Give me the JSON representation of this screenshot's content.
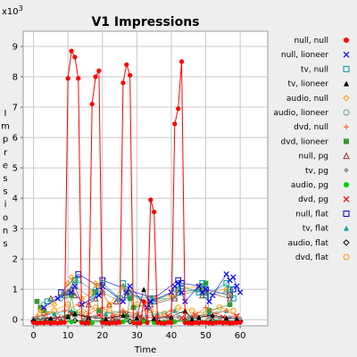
{
  "chart_data": {
    "type": "scatter",
    "title": "V1 Impressions",
    "xlabel": "Time",
    "ylabel": "Impressions",
    "y_multiplier_label": "x10",
    "y_multiplier_exp": "3",
    "xlim": [
      -3,
      68
    ],
    "ylim": [
      -200,
      9500
    ],
    "x_ticks": [
      0,
      10,
      20,
      30,
      40,
      50,
      60
    ],
    "y_ticks": [
      0,
      1000,
      2000,
      3000,
      4000,
      5000,
      6000,
      7000,
      8000,
      9000
    ],
    "y_tick_labels": [
      "0",
      "1",
      "2",
      "3",
      "4",
      "5",
      "6",
      "7",
      "8",
      "9"
    ],
    "grid": true,
    "legend_position": "right",
    "series": [
      {
        "name": "null, null",
        "color": "#ff0000",
        "marker": "dot",
        "line": true,
        "x": [
          0,
          1,
          2,
          3,
          4,
          5,
          6,
          7,
          8,
          9,
          10,
          11,
          12,
          13,
          14,
          15,
          16,
          17,
          18,
          19,
          20,
          21,
          22,
          23,
          24,
          25,
          26,
          27,
          28,
          29,
          30,
          31,
          32,
          33,
          34,
          35,
          36,
          37,
          38,
          39,
          40,
          41,
          42,
          43,
          44,
          45,
          46,
          47,
          48,
          49,
          50,
          51,
          52,
          53,
          54,
          55,
          56,
          57,
          58,
          59,
          60
        ],
        "y": [
          -100,
          -120,
          -100,
          -110,
          -90,
          -120,
          -100,
          -110,
          -100,
          -90,
          7950,
          8850,
          8650,
          7950,
          -100,
          -120,
          -110,
          7100,
          8000,
          8200,
          -100,
          -110,
          -120,
          -100,
          -110,
          -90,
          7800,
          8400,
          8050,
          -100,
          -120,
          -110,
          600,
          -100,
          3950,
          3550,
          -100,
          -110,
          -120,
          -90,
          -100,
          6450,
          6950,
          8500,
          -100,
          -110,
          -120,
          -100,
          -110,
          -90,
          -100,
          -110,
          -120,
          -100,
          -90,
          -110,
          -100,
          -120,
          -110,
          -100,
          -90
        ]
      },
      {
        "name": "null, lioneer",
        "color": "#0000ff",
        "marker": "x",
        "x": [
          3,
          7,
          11,
          12,
          14,
          19,
          20,
          26,
          27,
          28,
          33,
          34,
          40,
          41,
          42,
          43,
          44,
          48,
          49,
          50,
          51,
          52,
          56,
          57,
          58,
          59,
          60
        ],
        "y": [
          400,
          700,
          900,
          1100,
          500,
          800,
          1100,
          600,
          900,
          1100,
          400,
          600,
          900,
          1100,
          1200,
          900,
          600,
          1100,
          900,
          1000,
          600,
          800,
          1500,
          1300,
          1400,
          1100,
          900
        ]
      },
      {
        "name": "tv, null",
        "color": "#009999",
        "marker": "square",
        "x": [
          4,
          9,
          12,
          13,
          18,
          20,
          25,
          26,
          28,
          34,
          35,
          42,
          43,
          48,
          49,
          50,
          56,
          57,
          58
        ],
        "y": [
          600,
          800,
          1300,
          1300,
          900,
          1200,
          700,
          1200,
          800,
          700,
          600,
          1000,
          1100,
          900,
          1200,
          800,
          1200,
          1000,
          700
        ]
      },
      {
        "name": "tv, lioneer",
        "color": "#000000",
        "marker": "triangle",
        "x": [
          0,
          5,
          10,
          12,
          16,
          21,
          26,
          30,
          32,
          35,
          40,
          44,
          46,
          48,
          52,
          56,
          59
        ],
        "y": [
          0,
          50,
          100,
          200,
          80,
          30,
          150,
          60,
          1000,
          40,
          100,
          300,
          20,
          80,
          150,
          60,
          30
        ]
      },
      {
        "name": "audio, null",
        "color": "#ff9900",
        "marker": "diamond",
        "x": [
          2,
          6,
          10,
          11,
          12,
          14,
          17,
          18,
          19,
          22,
          26,
          27,
          33,
          35,
          40,
          42,
          48,
          50,
          56,
          57
        ],
        "y": [
          300,
          500,
          1200,
          1400,
          1300,
          700,
          900,
          1200,
          1100,
          500,
          1100,
          900,
          500,
          700,
          800,
          1000,
          1100,
          900,
          1000,
          800
        ]
      },
      {
        "name": "audio, lioneer",
        "color": "#669999",
        "marker": "circle",
        "x": [
          3,
          8,
          10,
          12,
          17,
          18,
          20,
          25,
          27,
          28,
          33,
          34,
          41,
          42,
          48,
          49,
          50,
          56,
          57
        ],
        "y": [
          500,
          700,
          900,
          1100,
          700,
          1000,
          900,
          600,
          1000,
          900,
          500,
          700,
          700,
          900,
          1000,
          1100,
          800,
          900,
          1000
        ]
      },
      {
        "name": "dvd, null",
        "color": "#ff6633",
        "marker": "plus",
        "x": [
          1,
          4,
          9,
          13,
          16,
          20,
          23,
          26,
          30,
          33,
          36,
          40,
          44,
          47,
          50,
          53,
          56,
          59
        ],
        "y": [
          100,
          200,
          300,
          500,
          200,
          400,
          150,
          300,
          200,
          350,
          100,
          300,
          200,
          150,
          400,
          200,
          300,
          100
        ]
      },
      {
        "name": "dvd, lioneer",
        "color": "#339933",
        "marker": "fsquare",
        "x": [
          1,
          2,
          3,
          10,
          11,
          12,
          18,
          19,
          27,
          28,
          29,
          49,
          50,
          51,
          57
        ],
        "y": [
          600,
          400,
          300,
          100,
          800,
          200,
          900,
          300,
          100,
          700,
          400,
          1000,
          1200,
          300,
          500
        ]
      },
      {
        "name": "null, pg",
        "color": "#993333",
        "marker": "triangle-open",
        "x": [
          5,
          10,
          11,
          12,
          16,
          18,
          20,
          22,
          24,
          27,
          28,
          34,
          41,
          42,
          48,
          49,
          50,
          57
        ],
        "y": [
          700,
          900,
          1000,
          800,
          500,
          700,
          900,
          500,
          600,
          800,
          900,
          500,
          700,
          900,
          1000,
          800,
          900,
          700
        ]
      },
      {
        "name": "tv, pg",
        "color": "#999999",
        "marker": "diamond-filled",
        "x": [
          0,
          3,
          6,
          9,
          12,
          15,
          18,
          21,
          24,
          27,
          30,
          33,
          36,
          39,
          42,
          45,
          48,
          51,
          54,
          57,
          60
        ],
        "y": [
          50,
          80,
          40,
          60,
          100,
          30,
          90,
          50,
          70,
          40,
          60,
          80,
          30,
          50,
          90,
          40,
          70,
          60,
          50,
          80,
          40
        ]
      },
      {
        "name": "audio, pg",
        "color": "#00cc00",
        "marker": "dot",
        "x": [
          2,
          5,
          8,
          11,
          14,
          17,
          20,
          23,
          26,
          29,
          32,
          35,
          38,
          41,
          44,
          47,
          50,
          53,
          56,
          59
        ],
        "y": [
          -80,
          -60,
          -90,
          -70,
          -80,
          -100,
          -60,
          -90,
          -70,
          -80,
          -60,
          -90,
          -80,
          -70,
          -60,
          -90,
          -80,
          -70,
          -60,
          -80
        ]
      },
      {
        "name": "dvd, pg",
        "color": "#ff0000",
        "marker": "x",
        "x": [
          3,
          7,
          11,
          15,
          19,
          23,
          27,
          31,
          35,
          39,
          43,
          47,
          51,
          55,
          59
        ],
        "y": [
          100,
          50,
          200,
          80,
          150,
          60,
          180,
          90,
          70,
          120,
          60,
          150,
          100,
          80,
          120
        ]
      },
      {
        "name": "null, flat",
        "color": "#0000cc",
        "marker": "square",
        "x": [
          8,
          13,
          19,
          20,
          27,
          35,
          42,
          43,
          49,
          50,
          57,
          58
        ],
        "y": [
          900,
          1500,
          1100,
          1300,
          1000,
          700,
          1300,
          1200,
          1100,
          1000,
          800,
          1000
        ]
      },
      {
        "name": "tv, flat",
        "color": "#00aa99",
        "marker": "triangle-filled",
        "x": [
          1,
          6,
          11,
          16,
          21,
          26,
          31,
          36,
          41,
          46,
          51,
          56
        ],
        "y": [
          100,
          200,
          300,
          100,
          200,
          300,
          100,
          200,
          300,
          100,
          200,
          300
        ]
      },
      {
        "name": "audio, flat",
        "color": "#000000",
        "marker": "diamond",
        "x": [
          0,
          4,
          8,
          12,
          16,
          20,
          24,
          28,
          32,
          36,
          40,
          44,
          48,
          52,
          56,
          60
        ],
        "y": [
          -50,
          -20,
          -60,
          -30,
          -40,
          -50,
          -20,
          -60,
          -30,
          -40,
          -50,
          -20,
          -60,
          -30,
          -40,
          -50
        ]
      },
      {
        "name": "dvd, flat",
        "color": "#ff9900",
        "marker": "circle",
        "x": [
          2,
          6,
          10,
          14,
          18,
          22,
          26,
          30,
          34,
          38,
          42,
          46,
          50,
          54,
          58
        ],
        "y": [
          200,
          300,
          500,
          200,
          400,
          300,
          200,
          500,
          300,
          200,
          400,
          300,
          200,
          400,
          300
        ]
      }
    ]
  }
}
